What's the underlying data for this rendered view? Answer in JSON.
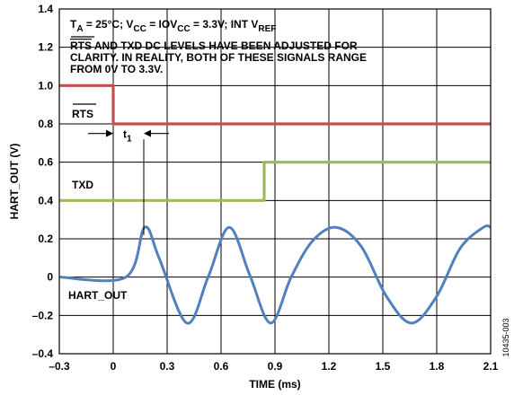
{
  "chart_data": {
    "type": "line",
    "xlabel": "TIME (ms)",
    "ylabel": "HART_OUT (V)",
    "xlim": [
      -0.3,
      2.1
    ],
    "ylim": [
      -0.4,
      1.4
    ],
    "x_ticks": [
      "–0.3",
      "0",
      "0.3",
      "0.6",
      "0.9",
      "1.2",
      "1.5",
      "1.8",
      "2.1"
    ],
    "y_ticks": [
      "–0.4",
      "–0.2",
      "0",
      "0.2",
      "0.4",
      "0.6",
      "0.8",
      "1.0",
      "1.2",
      "1.4"
    ],
    "grid": true,
    "colors": {
      "rts": "#c0504d",
      "txd": "#9bbb59",
      "hart_out": "#4f81bd"
    },
    "series": [
      {
        "name": "RTS",
        "x": [
          -0.3,
          0.0,
          0.0,
          2.1
        ],
        "y": [
          1.0,
          1.0,
          0.8,
          0.8
        ]
      },
      {
        "name": "TXD",
        "x": [
          -0.3,
          0.84,
          0.84,
          2.1
        ],
        "y": [
          0.4,
          0.4,
          0.6,
          0.6
        ]
      },
      {
        "name": "HART_OUT",
        "x": [
          -0.3,
          0.07,
          0.175,
          0.255,
          0.41,
          0.528,
          0.645,
          0.76,
          0.876,
          0.99,
          1.11,
          1.24,
          1.38,
          1.52,
          1.66,
          1.8,
          1.93,
          2.06,
          2.1
        ],
        "y": [
          0.0,
          0.0,
          0.26,
          0.1,
          -0.24,
          0.0,
          0.26,
          0.01,
          -0.24,
          0.0,
          0.19,
          0.26,
          0.16,
          -0.1,
          -0.24,
          -0.1,
          0.15,
          0.26,
          0.26
        ]
      }
    ],
    "annotations": {
      "conditions_line_1": "T",
      "conditions_sub_1": "A",
      "conditions_line_2": " = 25°C; V",
      "conditions_sub_2": "CC",
      "conditions_line_3": " = IOV",
      "conditions_sub_3": "CC",
      "conditions_line_4": " = 3.3V; INT V",
      "conditions_sub_4": "REF",
      "note_rts": "RTS",
      "note_rest_1": " AND TXD DC LEVELS HAVE BEEN ADJUSTED FOR",
      "note_line_2": "CLARITY. IN REALITY, BOTH OF THESE SIGNALS RANGE",
      "note_line_3": "FROM 0V TO 3.3V.",
      "label_rts": "RTS",
      "label_txd": "TXD",
      "label_hart_out": "HART_OUT",
      "label_t": "t",
      "label_t_sub": "1",
      "t1_start_x": 0.0,
      "t1_end_x": 0.17,
      "t1_y": 0.75
    },
    "figure_id": "10435-003"
  }
}
